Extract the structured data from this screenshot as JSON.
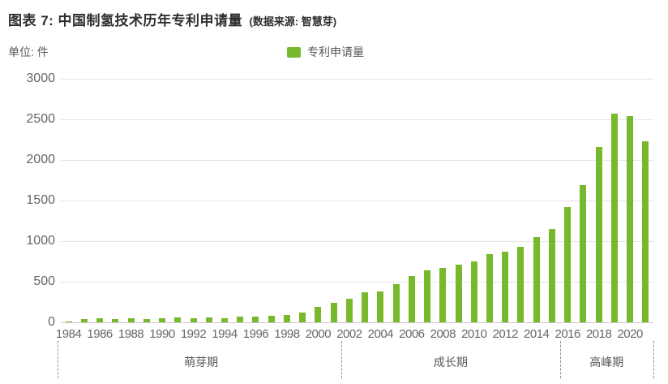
{
  "header": {
    "title": "图表 7: 中国制氢技术历年专利申请量",
    "source_note": "(数据来源: 智慧芽)",
    "unit_label": "单位: 件"
  },
  "legend": {
    "label": "专利申请量",
    "swatch_color": "#77b82c"
  },
  "colors": {
    "bar": "#77b82c",
    "title_text": "#2f2f2f",
    "axis_text": "#666666",
    "gridline": "#e4e4e4",
    "phase_text": "#595959"
  },
  "chart_data": {
    "type": "bar",
    "title": "图表 7: 中国制氢技术历年专利申请量",
    "series_name": "专利申请量",
    "ylabel": "单位: 件",
    "xlabel": "",
    "ylim": [
      0,
      3000
    ],
    "yticks": [
      0,
      500,
      1000,
      1500,
      2000,
      2500,
      3000
    ],
    "grid": true,
    "legend_position": "top-center",
    "x": [
      1984,
      1985,
      1986,
      1987,
      1988,
      1989,
      1990,
      1991,
      1992,
      1993,
      1994,
      1995,
      1996,
      1997,
      1998,
      1999,
      2000,
      2001,
      2002,
      2003,
      2004,
      2005,
      2006,
      2007,
      2008,
      2009,
      2010,
      2011,
      2012,
      2013,
      2014,
      2015,
      2016,
      2017,
      2018,
      2019,
      2020,
      2021
    ],
    "values": [
      10,
      45,
      50,
      40,
      50,
      40,
      50,
      60,
      50,
      65,
      50,
      70,
      75,
      80,
      95,
      120,
      195,
      240,
      290,
      370,
      385,
      470,
      575,
      640,
      670,
      710,
      755,
      845,
      870,
      930,
      1050,
      1155,
      1420,
      1695,
      2160,
      2575,
      2540,
      2230
    ],
    "xtick_labels": [
      "1984",
      "1986",
      "1988",
      "1990",
      "1992",
      "1994",
      "1996",
      "1998",
      "2000",
      "2002",
      "2004",
      "2006",
      "2008",
      "2010",
      "2012",
      "2014",
      "2016",
      "2018",
      "2020"
    ],
    "phases": [
      {
        "label": "萌芽期",
        "start_year": 1984,
        "end_year": 2001
      },
      {
        "label": "成长期",
        "start_year": 2002,
        "end_year": 2015
      },
      {
        "label": "高峰期",
        "start_year": 2016,
        "end_year": 2021
      }
    ]
  }
}
